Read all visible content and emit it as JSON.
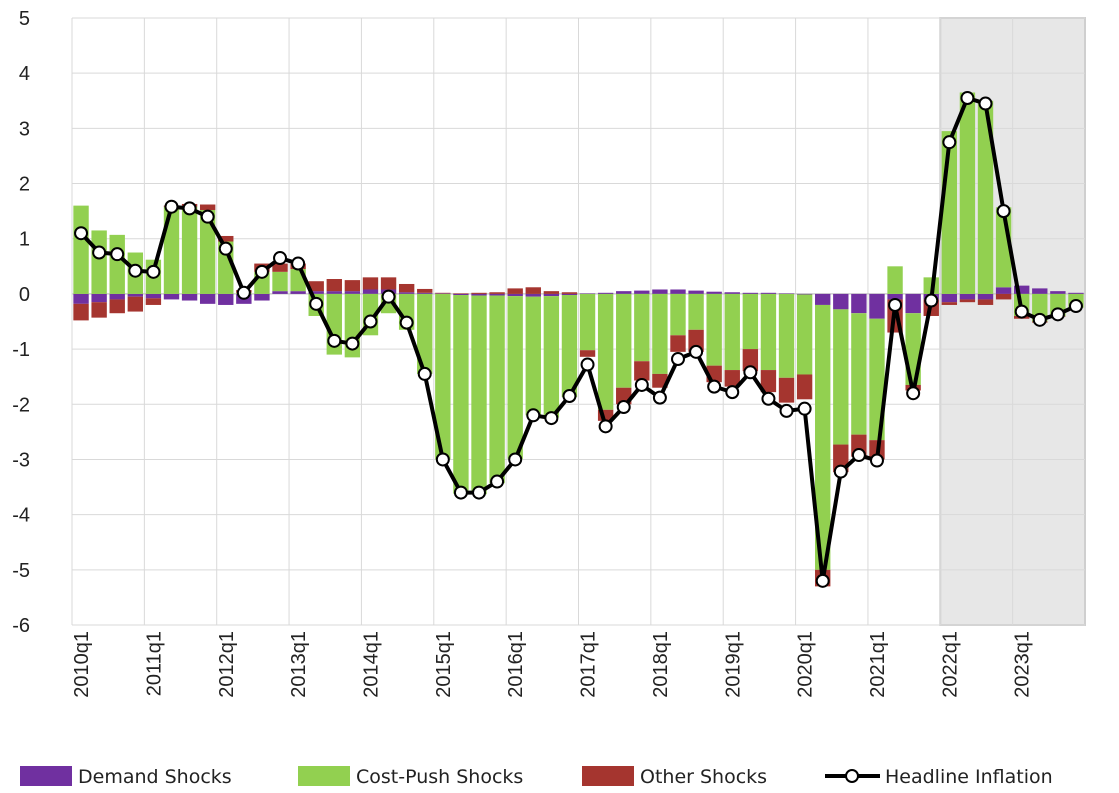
{
  "chart_data": {
    "type": "bar",
    "stacked": true,
    "categories": [
      "2010q1",
      null,
      null,
      null,
      "2011q1",
      null,
      null,
      null,
      "2012q1",
      null,
      null,
      null,
      "2013q1",
      null,
      null,
      null,
      "2014q1",
      null,
      null,
      null,
      "2015q1",
      null,
      null,
      null,
      "2016q1",
      null,
      null,
      null,
      "2017q1",
      null,
      null,
      null,
      "2018q1",
      null,
      null,
      null,
      "2019q1",
      null,
      null,
      null,
      "2020q1",
      null,
      null,
      null,
      "2021q1",
      null,
      null,
      null,
      "2022q1",
      null,
      null,
      null,
      "2023q1",
      null,
      null,
      null
    ],
    "shaded_from": "2022q1",
    "ylim": [
      -6,
      5
    ],
    "yticks": [
      -6,
      -5,
      -4,
      -3,
      -2,
      -1,
      0,
      1,
      2,
      3,
      4,
      5
    ],
    "grid": true,
    "legend": "bottom",
    "series": [
      {
        "name": "Demand Shocks",
        "color": "#7030a0",
        "values": [
          -0.18,
          -0.15,
          -0.1,
          -0.05,
          -0.08,
          -0.1,
          -0.12,
          -0.18,
          -0.2,
          -0.18,
          -0.12,
          0.05,
          0.05,
          0.05,
          0.05,
          0.05,
          0.08,
          0.08,
          0.03,
          0.02,
          0.01,
          -0.02,
          -0.03,
          -0.03,
          -0.04,
          -0.05,
          -0.04,
          -0.02,
          0.01,
          0.02,
          0.05,
          0.06,
          0.08,
          0.08,
          0.06,
          0.04,
          0.03,
          0.02,
          0.02,
          0.01,
          -0.01,
          -0.2,
          -0.28,
          -0.35,
          -0.45,
          -0.1,
          -0.35,
          -0.1,
          -0.15,
          -0.1,
          -0.1,
          0.12,
          0.15,
          0.1,
          0.05,
          0.02
        ]
      },
      {
        "name": "Cost-Push Shocks",
        "color": "#92d050",
        "values": [
          1.6,
          1.15,
          1.07,
          0.75,
          0.62,
          1.58,
          1.58,
          1.52,
          0.95,
          0.02,
          0.4,
          0.35,
          0.4,
          -0.4,
          -1.1,
          -1.15,
          -0.75,
          -0.35,
          -0.65,
          -1.45,
          -3.0,
          -3.6,
          -3.6,
          -3.4,
          -2.95,
          -2.15,
          -2.2,
          -1.85,
          -1.02,
          -2.1,
          -1.7,
          -1.22,
          -1.45,
          -0.75,
          -0.65,
          -1.3,
          -1.38,
          -1.0,
          -1.38,
          -1.52,
          -1.45,
          -4.8,
          -2.45,
          -2.2,
          -2.2,
          0.5,
          -1.3,
          0.3,
          2.95,
          3.65,
          3.5,
          1.45,
          -0.4,
          -0.5,
          -0.4,
          -0.25
        ]
      },
      {
        "name": "Other Shocks",
        "color": "#a5352f",
        "values": [
          -0.3,
          -0.28,
          -0.25,
          -0.27,
          -0.12,
          0.02,
          0.05,
          0.1,
          0.1,
          0.05,
          0.15,
          0.15,
          0.1,
          0.18,
          0.22,
          0.2,
          0.22,
          0.22,
          0.15,
          0.07,
          0.01,
          0.01,
          0.02,
          0.03,
          0.1,
          0.12,
          0.05,
          0.03,
          -0.12,
          -0.2,
          -0.3,
          -0.35,
          -0.25,
          -0.3,
          -0.4,
          -0.3,
          -0.3,
          -0.4,
          -0.4,
          -0.45,
          -0.45,
          -0.3,
          -0.5,
          -0.4,
          -0.35,
          -0.6,
          -0.1,
          -0.3,
          -0.05,
          -0.05,
          -0.1,
          -0.1,
          -0.05,
          -0.02,
          -0.01,
          0.0
        ]
      },
      {
        "name": "Headline Inflation",
        "type": "line",
        "color": "#000000",
        "values": [
          1.1,
          0.75,
          0.72,
          0.42,
          0.4,
          1.58,
          1.55,
          1.4,
          0.82,
          0.02,
          0.4,
          0.65,
          0.55,
          -0.18,
          -0.85,
          -0.9,
          -0.5,
          -0.05,
          -0.52,
          -1.45,
          -3.0,
          -3.6,
          -3.6,
          -3.4,
          -3.0,
          -2.2,
          -2.25,
          -1.85,
          -1.28,
          -2.4,
          -2.05,
          -1.65,
          -1.88,
          -1.18,
          -1.05,
          -1.68,
          -1.78,
          -1.42,
          -1.9,
          -2.12,
          -2.08,
          -5.2,
          -3.22,
          -2.92,
          -3.02,
          -0.2,
          -1.8,
          -0.12,
          2.75,
          3.55,
          3.45,
          1.5,
          -0.32,
          -0.47,
          -0.37,
          -0.22
        ]
      }
    ]
  }
}
